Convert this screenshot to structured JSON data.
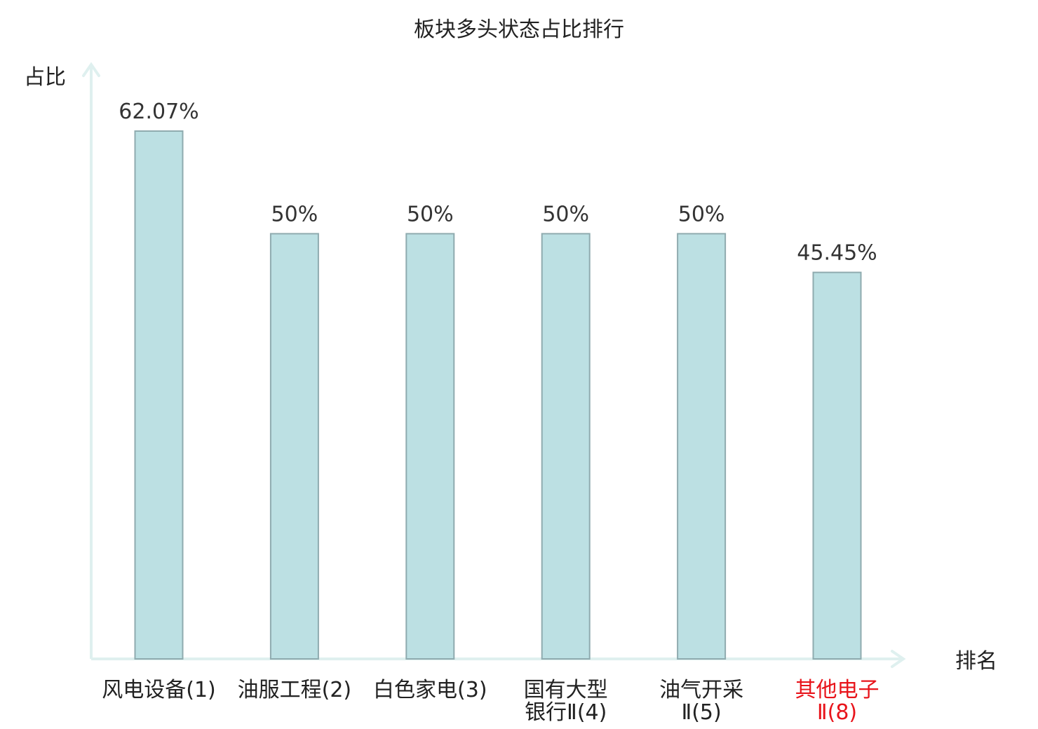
{
  "chart_data": {
    "type": "bar",
    "title": "板块多头状态占比排行",
    "ylabel": "占比",
    "xlabel": "排名",
    "categories": [
      [
        "风电设备(1)"
      ],
      [
        "油服工程(2)"
      ],
      [
        "白色家电(3)"
      ],
      [
        "国有大型",
        "银行Ⅱ(4)"
      ],
      [
        "油气开采",
        "Ⅱ(5)"
      ],
      [
        "其他电子",
        "Ⅱ(8)"
      ]
    ],
    "values": [
      62.07,
      50,
      50,
      50,
      50,
      45.45
    ],
    "value_labels": [
      "62.07%",
      "50%",
      "50%",
      "50%",
      "50%",
      "45.45%"
    ],
    "highlight_index": 5,
    "ylim": [
      0,
      62.07
    ],
    "grid": false,
    "colors": {
      "bar_fill": "#bce0e3",
      "bar_stroke": "#8fabaf",
      "axis": "#dff0ef",
      "label": "#222222",
      "highlight": "#e8141b"
    }
  }
}
